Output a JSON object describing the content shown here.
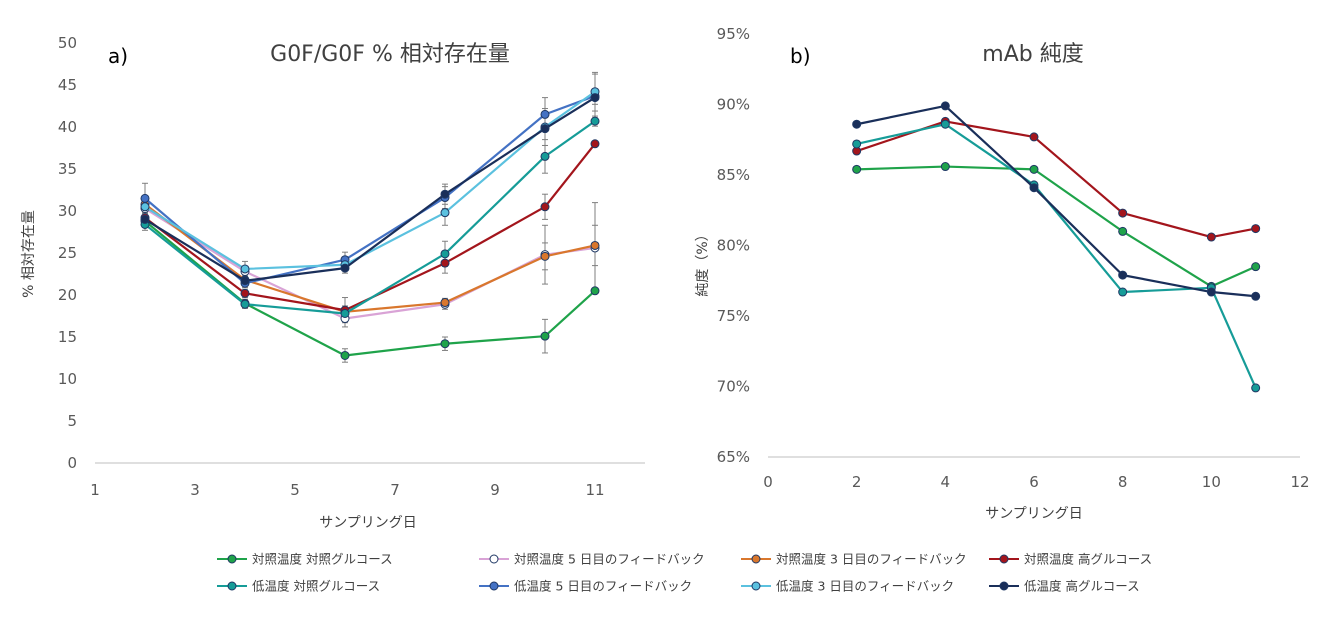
{
  "legend": [
    {
      "name": "対照温度 対照グルコース",
      "color": "#1fa34a",
      "fill": "#1fa34a"
    },
    {
      "name": "対照温度 5 日目のフィードバック",
      "color": "#d9a3d6",
      "fill": "#ffffff"
    },
    {
      "name": "対照温度 3 日目のフィードバック",
      "color": "#d9772d",
      "fill": "#d9772d"
    },
    {
      "name": "対照温度 高グルコース",
      "color": "#a3151c",
      "fill": "#a3151c"
    },
    {
      "name": "低温度 対照グルコース",
      "color": "#169c98",
      "fill": "#169c98"
    },
    {
      "name": "低温度 5 日目のフィードバック",
      "color": "#4472c4",
      "fill": "#4472c4"
    },
    {
      "name": "低温度 3 日目のフィードバック",
      "color": "#5bc1df",
      "fill": "#5bc1df"
    },
    {
      "name": "低温度 高グルコース",
      "color": "#1a2f5a",
      "fill": "#1a2f5a"
    }
  ],
  "chart_data": [
    {
      "type": "line",
      "panel_label": "a)",
      "title": "G0F/G0F % 相対存在量",
      "xlabel": "サンプリング日",
      "ylabel": "% 相対存在量",
      "xlim": [
        1,
        12
      ],
      "ylim": [
        0,
        50
      ],
      "xticks": [
        1,
        3,
        5,
        7,
        9,
        11
      ],
      "yticks": [
        0,
        5,
        10,
        15,
        20,
        25,
        30,
        35,
        40,
        45,
        50
      ],
      "grid": false,
      "legend_position": "bottom",
      "series": [
        {
          "name": "対照温度 対照グルコース",
          "x": [
            2,
            4,
            6,
            8,
            10,
            11
          ],
          "y": [
            28.8,
            19.0,
            12.8,
            14.2,
            15.1,
            20.5
          ],
          "err": [
            0.6,
            0.5,
            0.8,
            0.8,
            2.0,
            0.3
          ]
        },
        {
          "name": "対照温度 5 日目のフィードバック",
          "x": [
            2,
            4,
            6,
            8,
            10,
            11
          ],
          "y": [
            30.3,
            22.8,
            17.2,
            18.9,
            24.8,
            25.6
          ],
          "err": [
            1.0,
            0.6,
            1.0,
            0.6,
            3.5,
            5.4
          ]
        },
        {
          "name": "対照温度 3 日目のフィードバック",
          "x": [
            2,
            4,
            6,
            8,
            10,
            11
          ],
          "y": [
            30.8,
            21.8,
            18.0,
            19.1,
            24.6,
            25.9
          ],
          "err": [
            1.0,
            0.5,
            0.7,
            0.5,
            1.6,
            2.4
          ]
        },
        {
          "name": "対照温度 高グルコース",
          "x": [
            2,
            4,
            6,
            8,
            10,
            11
          ],
          "y": [
            29.2,
            20.2,
            18.2,
            23.8,
            30.5,
            38.0
          ],
          "err": [
            0.8,
            0.5,
            1.5,
            1.2,
            1.5,
            0.3
          ]
        },
        {
          "name": "低温度 対照グルコース",
          "x": [
            2,
            4,
            6,
            8,
            10,
            11
          ],
          "y": [
            28.4,
            18.9,
            17.8,
            24.9,
            36.5,
            40.7
          ],
          "err": [
            0.7,
            0.5,
            0.7,
            1.5,
            2.0,
            0.6
          ]
        },
        {
          "name": "低温度 5 日目のフィードバック",
          "x": [
            2,
            4,
            6,
            8,
            10,
            11
          ],
          "y": [
            31.5,
            21.4,
            24.2,
            31.6,
            41.5,
            43.7
          ],
          "err": [
            1.8,
            0.5,
            0.9,
            1.3,
            2.0,
            2.6
          ]
        },
        {
          "name": "低温度 3 日目のフィードバック",
          "x": [
            2,
            4,
            6,
            8,
            10,
            11
          ],
          "y": [
            30.5,
            23.1,
            23.6,
            29.8,
            40.0,
            44.2
          ],
          "err": [
            1.0,
            0.9,
            0.7,
            1.5,
            2.2,
            2.3
          ]
        },
        {
          "name": "低温度 高グルコース",
          "x": [
            2,
            4,
            6,
            8,
            10,
            11
          ],
          "y": [
            29.0,
            21.7,
            23.2,
            32.0,
            39.8,
            43.5
          ],
          "err": [
            0.8,
            0.5,
            0.6,
            1.2,
            2.0,
            0.8
          ]
        }
      ]
    },
    {
      "type": "line",
      "panel_label": "b)",
      "title": "mAb 純度",
      "xlabel": "サンプリング日",
      "ylabel": "純度（%）",
      "xlim": [
        0,
        12
      ],
      "ylim": [
        65,
        95
      ],
      "xticks": [
        0,
        2,
        4,
        6,
        8,
        10,
        12
      ],
      "yticks": [
        65,
        70,
        75,
        80,
        85,
        90,
        95
      ],
      "y_tick_format": "percent",
      "grid": false,
      "series": [
        {
          "name": "対照温度 対照グルコース",
          "x": [
            2,
            4,
            6,
            8,
            10,
            11
          ],
          "y": [
            85.4,
            85.6,
            85.4,
            81.0,
            77.1,
            78.5
          ]
        },
        {
          "name": "対照温度 高グルコース",
          "x": [
            2,
            4,
            6,
            8,
            10,
            11
          ],
          "y": [
            86.7,
            88.8,
            87.7,
            82.3,
            80.6,
            81.2
          ]
        },
        {
          "name": "低温度 対照グルコース",
          "x": [
            2,
            4,
            6,
            8,
            10,
            11
          ],
          "y": [
            87.2,
            88.6,
            84.3,
            76.7,
            77.0,
            69.9
          ]
        },
        {
          "name": "低温度 高グルコース",
          "x": [
            2,
            4,
            6,
            8,
            10,
            11
          ],
          "y": [
            88.6,
            89.9,
            84.1,
            77.9,
            76.7,
            76.4
          ]
        }
      ]
    }
  ]
}
